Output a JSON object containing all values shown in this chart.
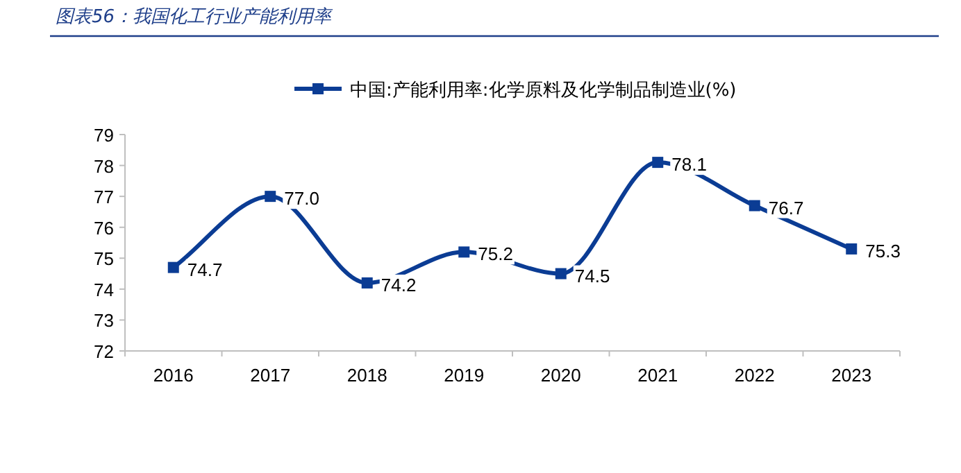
{
  "chart_data": {
    "type": "line",
    "title": "图表56：我国化工行业产能利用率",
    "categories": [
      "2016",
      "2017",
      "2018",
      "2019",
      "2020",
      "2021",
      "2022",
      "2023"
    ],
    "series": [
      {
        "name": "中国:产能利用率:化学原料及化学制品制造业(%)",
        "color": "#0b3c94",
        "values": [
          74.7,
          77.0,
          74.2,
          75.2,
          74.5,
          78.1,
          76.7,
          75.3
        ],
        "value_labels": [
          "74.7",
          "77.0",
          "74.2",
          "75.2",
          "74.5",
          "78.1",
          "76.7",
          "75.3"
        ]
      }
    ],
    "ylim": [
      72,
      79
    ],
    "yticks": [
      72,
      73,
      74,
      75,
      76,
      77,
      78,
      79
    ],
    "legend": "top",
    "marker": "square",
    "line_style": "solid",
    "grid": false
  }
}
